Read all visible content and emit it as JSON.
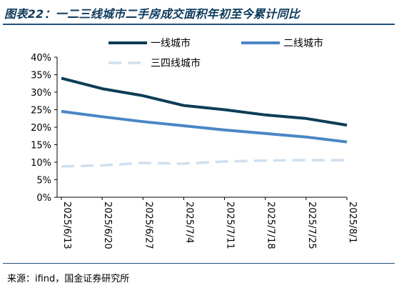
{
  "title": "图表22：一二三线城市二手房成交面积年初至今累计同比",
  "source": "来源：ifind，国金证券研究所",
  "chart_data": {
    "type": "line",
    "title": "图表22：一二三线城市二手房成交面积年初至今累计同比",
    "xlabel": "",
    "ylabel": "",
    "categories": [
      "2025/6/13",
      "2025/6/20",
      "2025/6/27",
      "2025/7/4",
      "2025/7/11",
      "2025/7/18",
      "2025/7/25",
      "2025/8/1"
    ],
    "ylim": [
      0,
      40
    ],
    "yticks": [
      0,
      5,
      10,
      15,
      20,
      25,
      30,
      35,
      40
    ],
    "ytick_labels": [
      "0%",
      "5%",
      "10%",
      "15%",
      "20%",
      "25%",
      "30%",
      "35%",
      "40%"
    ],
    "grid": false,
    "legend_position": "top",
    "series": [
      {
        "name": "一线城市",
        "color": "#0d3d56",
        "style": "solid",
        "values": [
          34.0,
          31.0,
          29.0,
          26.2,
          25.0,
          23.5,
          22.5,
          20.6
        ]
      },
      {
        "name": "二线城市",
        "color": "#4a86c5",
        "style": "solid",
        "values": [
          24.5,
          23.0,
          21.6,
          20.4,
          19.2,
          18.2,
          17.2,
          15.8
        ]
      },
      {
        "name": "三四线城市",
        "color": "#cfe0f0",
        "style": "dashed",
        "values": [
          8.8,
          9.1,
          9.8,
          9.6,
          10.2,
          10.5,
          10.6,
          10.6
        ]
      }
    ]
  }
}
